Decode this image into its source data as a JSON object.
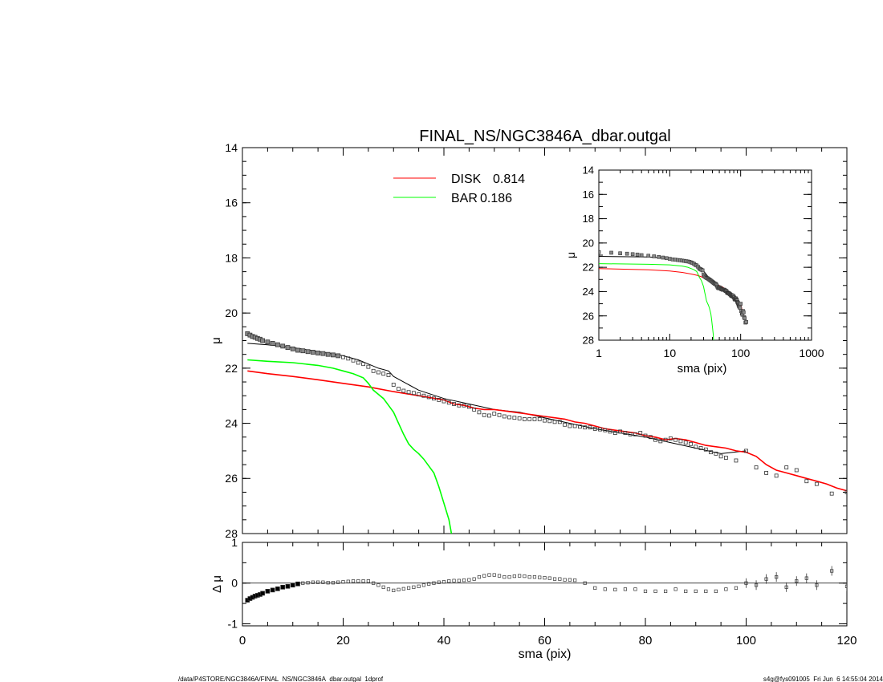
{
  "chart_data": [
    {
      "id": "main",
      "type": "scatter",
      "title": "FINAL_NS/NGC3846A_dbar.outgal",
      "xlabel": "",
      "ylabel": "μ",
      "xlim": [
        0,
        120
      ],
      "ylim": [
        28,
        14
      ],
      "y_inverted": true,
      "yticks": [
        14,
        16,
        18,
        20,
        22,
        24,
        26,
        28
      ],
      "grid": false,
      "legend_position": "top-center",
      "legend": [
        {
          "label": "DISK",
          "value": "0.814",
          "color": "#ff0000"
        },
        {
          "label": "BAR",
          "value": "0.186",
          "color": "#00ff00"
        }
      ],
      "series": [
        {
          "name": "data",
          "kind": "points",
          "color": "#555555",
          "x": [
            1,
            1.5,
            2,
            2.5,
            3,
            3.5,
            4,
            5,
            6,
            7,
            8,
            9,
            10,
            11,
            12,
            13,
            14,
            15,
            16,
            17,
            18,
            19,
            20,
            21,
            22,
            23,
            24,
            25,
            26,
            27,
            28,
            29,
            30,
            31,
            32,
            33,
            34,
            35,
            36,
            37,
            38,
            39,
            40,
            41,
            42,
            43,
            44,
            45,
            46,
            47,
            48,
            49,
            50,
            51,
            52,
            53,
            54,
            55,
            56,
            57,
            58,
            59,
            60,
            61,
            62,
            63,
            64,
            65,
            66,
            67,
            68,
            69,
            70,
            71,
            72,
            73,
            74,
            75,
            76,
            77,
            78,
            79,
            80,
            81,
            82,
            83,
            84,
            85,
            86,
            87,
            88,
            89,
            90,
            91,
            92,
            93,
            94,
            95,
            96,
            98,
            100,
            102,
            104,
            106,
            108,
            110,
            112,
            114,
            117,
            120
          ],
          "y": [
            20.75,
            20.8,
            20.85,
            20.88,
            20.92,
            20.95,
            21.0,
            21.05,
            21.1,
            21.15,
            21.2,
            21.25,
            21.3,
            21.35,
            21.37,
            21.4,
            21.42,
            21.45,
            21.47,
            21.5,
            21.52,
            21.55,
            21.6,
            21.65,
            21.72,
            21.8,
            21.85,
            21.95,
            22.1,
            22.15,
            22.2,
            22.25,
            22.6,
            22.75,
            22.82,
            22.87,
            22.9,
            22.95,
            23.0,
            23.05,
            23.1,
            23.15,
            23.2,
            23.25,
            23.3,
            23.35,
            23.35,
            23.4,
            23.5,
            23.6,
            23.7,
            23.72,
            23.65,
            23.7,
            23.75,
            23.78,
            23.8,
            23.82,
            23.85,
            23.85,
            23.85,
            23.85,
            23.9,
            23.92,
            23.95,
            23.95,
            24.05,
            24.1,
            24.1,
            24.12,
            24.15,
            24.15,
            24.2,
            24.22,
            24.25,
            24.3,
            24.35,
            24.3,
            24.35,
            24.4,
            24.4,
            24.35,
            24.45,
            24.5,
            24.6,
            24.65,
            24.6,
            24.55,
            24.6,
            24.65,
            24.7,
            24.75,
            24.85,
            24.9,
            24.95,
            25.05,
            25.1,
            25.2,
            25.25,
            25.35,
            25.0,
            25.6,
            25.8,
            25.9,
            25.6,
            25.7,
            26.1,
            26.2,
            26.55,
            26.5
          ]
        },
        {
          "name": "total model",
          "kind": "line",
          "color": "#000000",
          "x": [
            1,
            5,
            10,
            15,
            20,
            23,
            25,
            27,
            29,
            30,
            35,
            40,
            45,
            50,
            55,
            60,
            65,
            70,
            80,
            90,
            95,
            100
          ],
          "y": [
            21.1,
            21.15,
            21.25,
            21.4,
            21.55,
            21.7,
            21.85,
            22.0,
            22.1,
            22.3,
            22.8,
            23.1,
            23.3,
            23.5,
            23.6,
            23.8,
            24.0,
            24.2,
            24.5,
            24.9,
            25.1,
            25.0
          ]
        },
        {
          "name": "DISK",
          "kind": "line",
          "color": "#ff0000",
          "x": [
            1,
            5,
            10,
            15,
            20,
            25,
            30,
            35,
            40,
            42,
            44,
            46,
            48,
            50,
            52,
            54,
            56,
            58,
            60,
            62,
            64,
            66,
            68,
            70,
            72,
            74,
            76,
            78,
            80,
            82,
            84,
            86,
            88,
            90,
            92,
            94,
            96,
            98,
            100,
            102,
            104,
            106,
            108,
            110,
            112,
            114,
            116,
            118,
            120
          ],
          "y": [
            22.1,
            22.2,
            22.3,
            22.42,
            22.55,
            22.68,
            22.85,
            23.0,
            23.15,
            23.3,
            23.35,
            23.45,
            23.5,
            23.5,
            23.55,
            23.6,
            23.65,
            23.7,
            23.75,
            23.8,
            23.85,
            23.95,
            24.0,
            24.1,
            24.2,
            24.25,
            24.3,
            24.35,
            24.45,
            24.5,
            24.6,
            24.55,
            24.6,
            24.7,
            24.8,
            24.85,
            24.9,
            25.0,
            25.05,
            25.2,
            25.5,
            25.7,
            25.8,
            25.9,
            26.0,
            26.1,
            26.2,
            26.35,
            26.45
          ]
        },
        {
          "name": "BAR",
          "kind": "line",
          "color": "#00ff00",
          "x": [
            1,
            5,
            10,
            15,
            18,
            20,
            22,
            24,
            25,
            26,
            27,
            28,
            29,
            30,
            31,
            32,
            33,
            34,
            35,
            36,
            37,
            38,
            39,
            40,
            41,
            41.5
          ],
          "y": [
            21.7,
            21.75,
            21.8,
            21.9,
            22.0,
            22.1,
            22.2,
            22.35,
            22.55,
            22.8,
            22.95,
            23.1,
            23.35,
            23.6,
            24.0,
            24.4,
            24.75,
            24.95,
            25.1,
            25.3,
            25.55,
            25.8,
            26.3,
            26.9,
            27.5,
            28.0
          ]
        }
      ]
    },
    {
      "id": "inset",
      "type": "scatter",
      "xlabel": "sma (pix)",
      "ylabel": "μ",
      "xscale": "log",
      "xlim": [
        1,
        1000
      ],
      "xticks": [
        1,
        10,
        100,
        1000
      ],
      "xticklabels": [
        "1",
        "10",
        "100",
        "1000"
      ],
      "ylim": [
        28,
        14
      ],
      "y_inverted": true,
      "yticks": [
        14,
        16,
        18,
        20,
        22,
        24,
        26,
        28
      ],
      "grid": false
    },
    {
      "id": "residuals",
      "type": "scatter",
      "xlabel": "sma (pix)",
      "ylabel": "Δ μ",
      "xlim": [
        0,
        120
      ],
      "xticks": [
        0,
        20,
        40,
        60,
        80,
        100,
        120
      ],
      "ylim": [
        -1.05,
        1.0
      ],
      "yticks": [
        -1,
        0,
        1
      ],
      "grid": false,
      "zero_line": true,
      "series": [
        {
          "name": "residuals",
          "kind": "points",
          "color": "#555555",
          "x": [
            1,
            1.5,
            2,
            2.5,
            3,
            3.5,
            4,
            5,
            6,
            7,
            8,
            9,
            10,
            11,
            12,
            13,
            14,
            15,
            16,
            17,
            18,
            19,
            20,
            21,
            22,
            23,
            24,
            25,
            26,
            27,
            28,
            29,
            30,
            31,
            32,
            33,
            34,
            35,
            36,
            37,
            38,
            39,
            40,
            41,
            42,
            43,
            44,
            45,
            46,
            47,
            48,
            49,
            50,
            51,
            52,
            53,
            54,
            55,
            56,
            57,
            58,
            59,
            60,
            61,
            62,
            63,
            64,
            65,
            66,
            68,
            70,
            72,
            74,
            76,
            78,
            80,
            82,
            84,
            86,
            88,
            90,
            92,
            94,
            96,
            98,
            100,
            102,
            104,
            106,
            108,
            110,
            112,
            114,
            117,
            120
          ],
          "y": [
            -0.42,
            -0.38,
            -0.35,
            -0.32,
            -0.3,
            -0.28,
            -0.25,
            -0.2,
            -0.17,
            -0.14,
            -0.1,
            -0.08,
            -0.05,
            -0.02,
            0.0,
            0.01,
            0.02,
            0.02,
            0.02,
            0.01,
            0.01,
            0.02,
            0.03,
            0.04,
            0.05,
            0.05,
            0.05,
            0.05,
            0.0,
            -0.05,
            -0.1,
            -0.15,
            -0.18,
            -0.16,
            -0.14,
            -0.12,
            -0.1,
            -0.08,
            -0.05,
            -0.02,
            0.0,
            0.02,
            0.03,
            0.05,
            0.06,
            0.06,
            0.07,
            0.08,
            0.1,
            0.15,
            0.18,
            0.2,
            0.2,
            0.18,
            0.15,
            0.15,
            0.17,
            0.18,
            0.17,
            0.15,
            0.15,
            0.14,
            0.13,
            0.12,
            0.1,
            0.1,
            0.08,
            0.08,
            0.07,
            0.0,
            -0.12,
            -0.15,
            -0.16,
            -0.15,
            -0.15,
            -0.2,
            -0.2,
            -0.2,
            -0.15,
            -0.2,
            -0.2,
            -0.2,
            -0.2,
            -0.15,
            -0.12,
            0.0,
            -0.05,
            0.1,
            0.15,
            -0.1,
            0.05,
            0.12,
            -0.05,
            0.3,
            -0.08
          ]
        }
      ]
    }
  ],
  "footer": {
    "left": "/data/P4STORE/NGC3846A/FINAL_NS/NGC3846A_dbar.outgal_1dprof",
    "right": "s4g@fys091005  Fri Jun  6 14:55:04 2014"
  }
}
